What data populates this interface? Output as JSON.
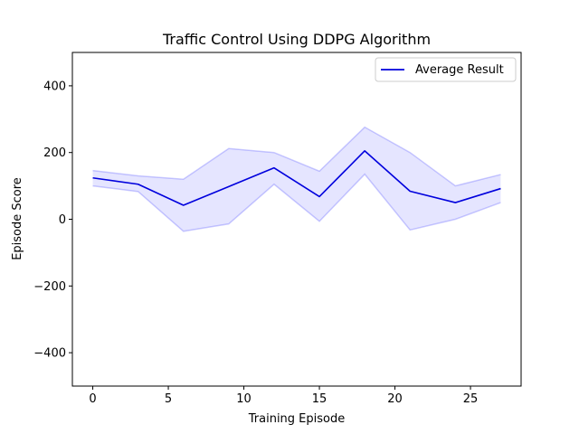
{
  "chart_data": {
    "type": "line",
    "title": "Traffic Control Using DDPG Algorithm",
    "xlabel": "Training Episode",
    "ylabel": "Episode Score",
    "xlim": [
      -1.35,
      28.35
    ],
    "ylim": [
      -500,
      500
    ],
    "xticks": [
      0,
      5,
      10,
      15,
      20,
      25
    ],
    "yticks": [
      -400,
      -200,
      0,
      200,
      400
    ],
    "grid": false,
    "legend_position": "top-right",
    "x": [
      0,
      3,
      6,
      9,
      12,
      15,
      18,
      21,
      24,
      27
    ],
    "series": [
      {
        "name": "Average Result",
        "color": "#0000dd",
        "values": [
          124,
          105,
          42,
          98,
          154,
          68,
          205,
          84,
          50,
          92
        ],
        "band_upper": [
          146,
          130,
          120,
          212,
          200,
          144,
          276,
          200,
          100,
          134
        ],
        "band_lower": [
          100,
          83,
          -36,
          -14,
          105,
          -6,
          135,
          -32,
          0,
          50
        ],
        "band_color": "#0000ff"
      }
    ]
  }
}
